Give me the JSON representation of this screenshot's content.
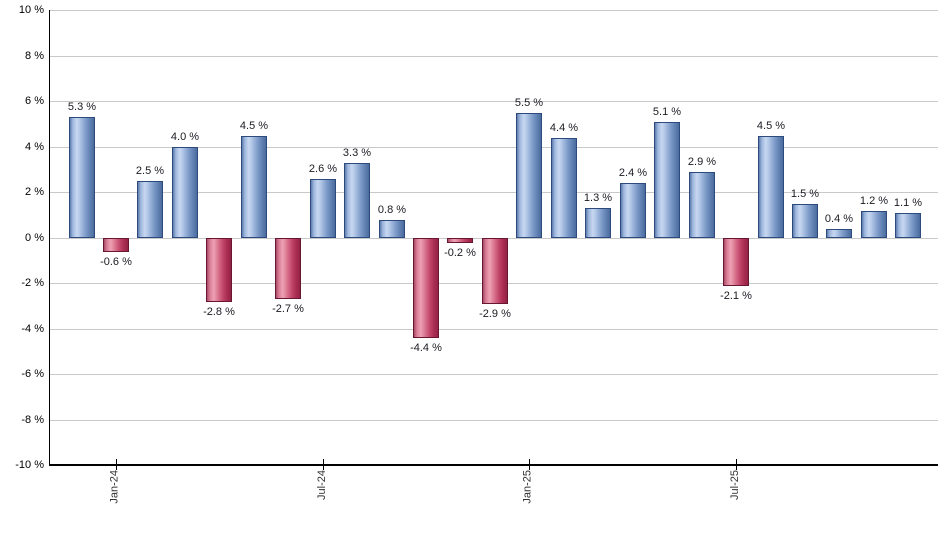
{
  "chart_data": {
    "type": "bar",
    "title": "",
    "unit": "%",
    "values": [
      5.3,
      -0.6,
      2.5,
      4.0,
      -2.8,
      4.5,
      -2.7,
      2.6,
      3.3,
      0.8,
      -4.4,
      -0.2,
      -2.9,
      5.5,
      4.4,
      1.3,
      2.4,
      5.1,
      2.9,
      -2.1,
      4.5,
      1.5,
      0.4,
      1.2,
      1.1
    ],
    "bar_labels": [
      "5.3 %",
      "-0.6 %",
      "2.5 %",
      "4.0 %",
      "-2.8 %",
      "4.5 %",
      "-2.7 %",
      "2.6 %",
      "3.3 %",
      "0.8 %",
      "-4.4 %",
      "-0.2 %",
      "-2.9 %",
      "5.5 %",
      "4.4 %",
      "1.3 %",
      "2.4 %",
      "5.1 %",
      "2.9 %",
      "-2.1 %",
      "4.5 %",
      "1.5 %",
      "0.4 %",
      "1.2 %",
      "1.1 %"
    ],
    "x_ticks": [
      {
        "bar_index": 1,
        "label": "Jan-24"
      },
      {
        "bar_index": 7,
        "label": "Jul-24"
      },
      {
        "bar_index": 13,
        "label": "Jan-25"
      },
      {
        "bar_index": 19,
        "label": "Jul-25"
      }
    ],
    "y_ticks": [
      {
        "value": 10,
        "label": "10 %"
      },
      {
        "value": 8,
        "label": "8 %"
      },
      {
        "value": 6,
        "label": "6 %"
      },
      {
        "value": 4,
        "label": "4 %"
      },
      {
        "value": 2,
        "label": "2 %"
      },
      {
        "value": 0,
        "label": "0 %"
      },
      {
        "value": -2,
        "label": "-2 %"
      },
      {
        "value": -4,
        "label": "-4 %"
      },
      {
        "value": -6,
        "label": "-6 %"
      },
      {
        "value": -8,
        "label": "-8 %"
      },
      {
        "value": -10,
        "label": "-10 %"
      }
    ],
    "ylim": [
      -10,
      10
    ],
    "grid": true,
    "legend": "none",
    "xlabel": "",
    "ylabel": "",
    "colors": {
      "positive_bar": "#7b9cd0",
      "negative_bar": "#cc4d72",
      "positive_border": "#2c4a7c",
      "negative_border": "#671731",
      "gridline": "#c9c9c9",
      "axis": "#000000",
      "value_label": "#1a1a22",
      "background": "#ffffff"
    }
  }
}
